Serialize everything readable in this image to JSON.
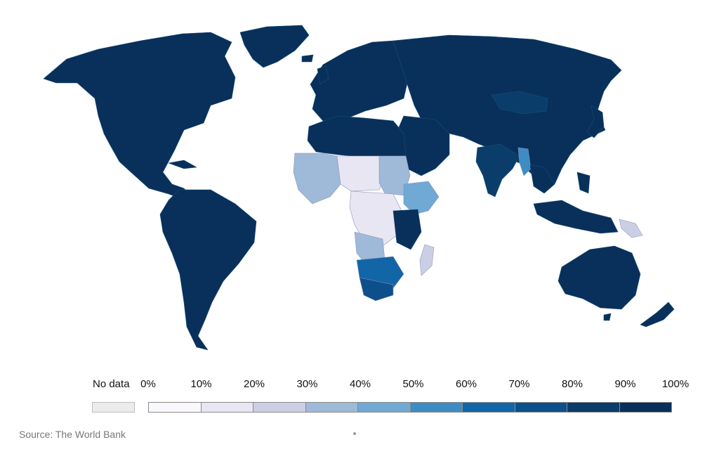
{
  "map": {
    "colors": {
      "ocean": "#ffffff",
      "high": "#08305a",
      "very_high": "#0b3d6b",
      "border": "#1b4f7c",
      "africa_border": "#8f95b8"
    },
    "regions": [
      {
        "name": "north-america",
        "bin": 9
      },
      {
        "name": "greenland",
        "bin": 9
      },
      {
        "name": "south-america",
        "bin": 9
      },
      {
        "name": "europe",
        "bin": 9
      },
      {
        "name": "russia-asia",
        "bin": 9
      },
      {
        "name": "australia",
        "bin": 9
      },
      {
        "name": "north-africa",
        "bin": 9
      },
      {
        "name": "middle-east",
        "bin": 9
      },
      {
        "name": "india",
        "bin": 8
      },
      {
        "name": "mongolia",
        "bin": 8
      },
      {
        "name": "myanmar",
        "bin": 5
      },
      {
        "name": "west-africa",
        "bin": 3
      },
      {
        "name": "sahel",
        "bin": 1
      },
      {
        "name": "sudan",
        "bin": 3
      },
      {
        "name": "ethiopia",
        "bin": 4
      },
      {
        "name": "central-africa",
        "bin": 1
      },
      {
        "name": "angola",
        "bin": 3
      },
      {
        "name": "southern-africa",
        "bin": 6
      },
      {
        "name": "south-africa",
        "bin": 7
      },
      {
        "name": "madagascar",
        "bin": 2
      },
      {
        "name": "papua-new-guinea",
        "bin": 2
      }
    ]
  },
  "legend": {
    "no_data_label": "No data",
    "no_data_color": "#ebebeb",
    "tick_labels": [
      "0%",
      "10%",
      "20%",
      "30%",
      "40%",
      "50%",
      "60%",
      "70%",
      "80%",
      "90%",
      "100%"
    ],
    "bin_colors": [
      "#fbf8fd",
      "#e8e6f3",
      "#cbcfe6",
      "#9fb9d9",
      "#6fa9d4",
      "#3d8cc4",
      "#1266a8",
      "#0d4f8b",
      "#0b3d6b",
      "#08305a"
    ]
  },
  "source": "Source: The World Bank"
}
